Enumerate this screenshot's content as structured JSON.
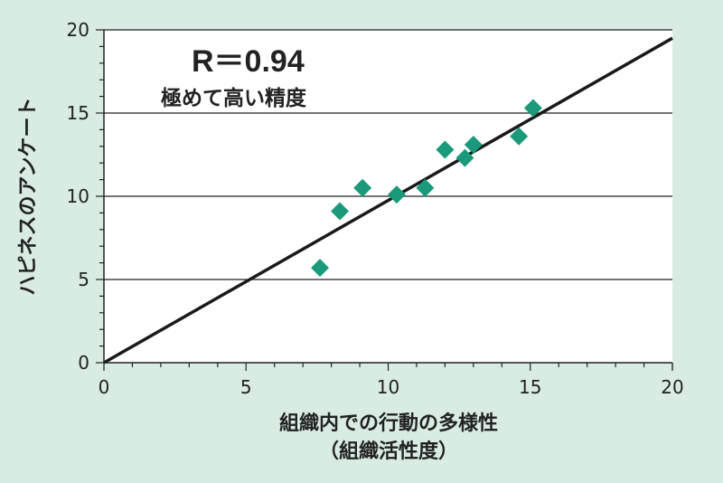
{
  "chart_data": {
    "type": "scatter",
    "xlabel_line1": "組織内での行動の多様性",
    "xlabel_line2": "（組織活性度）",
    "ylabel": "ハピネスのアンケート",
    "xlim": [
      0,
      20
    ],
    "ylim": [
      0,
      20
    ],
    "x_ticks": [
      0,
      5,
      10,
      15,
      20
    ],
    "y_ticks": [
      0,
      5,
      10,
      15,
      20
    ],
    "x_tick_labels": [
      "0",
      "5",
      "10",
      "15",
      "20"
    ],
    "y_tick_labels": [
      "0",
      "5",
      "10",
      "15",
      "20"
    ],
    "grid": "horizontal",
    "marker_color": "#1a9a7a",
    "line_color": "#1a1a1a",
    "background_color": "#d9ece3",
    "plot_background_color": "#ffffff",
    "annotation": {
      "main": "R＝0.94",
      "sub": "極めて高い精度"
    },
    "points": [
      {
        "x": 7.6,
        "y": 5.7
      },
      {
        "x": 8.3,
        "y": 9.1
      },
      {
        "x": 9.1,
        "y": 10.5
      },
      {
        "x": 10.3,
        "y": 10.1
      },
      {
        "x": 11.3,
        "y": 10.5
      },
      {
        "x": 12.0,
        "y": 12.8
      },
      {
        "x": 12.7,
        "y": 12.3
      },
      {
        "x": 13.0,
        "y": 13.1
      },
      {
        "x": 14.6,
        "y": 13.6
      },
      {
        "x": 15.1,
        "y": 15.3
      }
    ],
    "fit_line": {
      "x0": 0,
      "y0": 0,
      "x1": 20,
      "y1": 19.5
    }
  }
}
